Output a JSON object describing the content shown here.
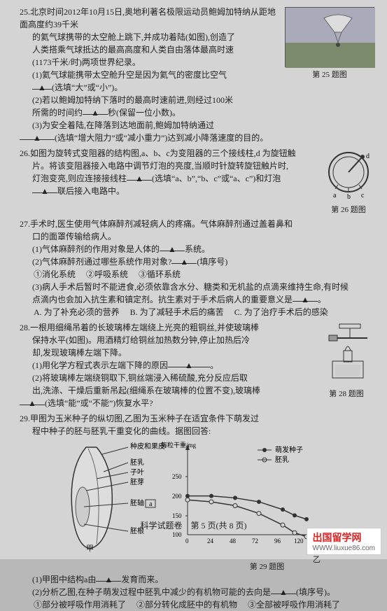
{
  "q25": {
    "num": "25.",
    "line1": "北京时间2012年10月15日,奥地利著名极限运动员鲍姆加特纳从距地面高度约39千米",
    "line2": "的氦气球携带的太空舱上跳下,并成功着陆(如图),创造了",
    "line3": "人类搭乘气球抵达的最高高度和人类自由落体最高时速",
    "line4": "(1173千米/时)两项世界纪录。",
    "p1a": "(1)氦气球能携带太空舱升空是因为氦气的密度比空气",
    "p1b": "(选填“大”或“小”)。",
    "p2a": "(2)若以鲍姆加特纳下落时的最高时速前进,则经过100米",
    "p2b": "所需的时间约",
    "p2c": "秒(保留一位小数)。",
    "p3a": "(3)为安全着陆,在降落到达地面前,鲍姆加特纳通过",
    "p3b": "(选填“增大阻力”或“减小重力”)达到减小降落速度的目的。",
    "figcap": "第 25 题图"
  },
  "q26": {
    "num": "26.",
    "line1": "如图为旋转式变阻器的结构图,a、b、c为变阻器的三个接线柱,d 为旋钮触",
    "line2": "片。将该变阻器接入电路中调节灯泡的亮度,当顺时针旋转旋钮触片时,",
    "p1a": "灯泡变亮,则应连接接线柱",
    "p1b": "(选填“a、b”,“b、c”或“a、c”)和灯泡",
    "p1c": "联后接入电路中。",
    "figcap": "第 26 题图"
  },
  "q27": {
    "num": "27.",
    "line1": "手术时,医生使用气体麻醉剂减轻病人的疼痛。气体麻醉剂通过盖着鼻和",
    "line2": "口的面罩传输给病人。",
    "p1a": "(1)气体麻醉剂的作用对象是人体的",
    "p1b": "系统。",
    "p2a": "(2)气体麻醉剂通过哪些系统作用对象?",
    "p2b": "(填序号)",
    "opts": [
      "①消化系统",
      "②呼吸系统",
      "③循环系统"
    ],
    "p3a": "(3)病人手术后暂时不能进食,必须依靠含水分、糖类和无机盐的点滴来维持生命,有时候",
    "p3b": "点滴内也会加入抗生素和镇定剂。抗生素对于手术后病人的重要意义是",
    "opts2": {
      "a": "A. 为了补充必须的营养",
      "b": "B. 为了减轻手术后的痛苦",
      "c": "C. 为了治疗手术后的感染"
    }
  },
  "q28": {
    "num": "28.",
    "line1": "一根用细绳吊着的长玻璃棒左端绕上光亮的粗铜丝,并使玻璃棒",
    "line2": "保持水平(如图)。用酒精灯给铜丝加热数分钟,停止加热后冷",
    "line3": "却,发现玻璃棒左端下降。",
    "p1": "(1)用化学方程式表示左端下降的原因",
    "p2a": "(2)将玻璃棒左端绕铜取下,铜丝端浸入稀硫酸,充分反应后取",
    "p2b": "出,洗涤、干燥后重新吊起(细绳系在玻璃棒的位置不变),玻璃棒",
    "p2c": "(选填“能”或“不能”)恢复水平?",
    "figcap": "第 28 题图"
  },
  "q29": {
    "num": "29.",
    "line1": "甲图为玉米种子的纵切图,乙图为玉米种子在适宜条件下萌发过",
    "line2": "程中种子的胚与胚乳干重变化的曲线。据图回答:",
    "seed_labels": {
      "l1": "种皮和果皮",
      "l2": "胚乳",
      "l3": "子叶",
      "l4": "胚芽",
      "l5": "胚轴",
      "l6": "胚根",
      "a": "a"
    },
    "chart": {
      "ylabel": "每粒干重/mg",
      "yticks": [
        "100",
        "150",
        "200",
        "250"
      ],
      "xlabel": "时间/h",
      "xticks": [
        "0",
        "24",
        "48",
        "72",
        "96",
        "120"
      ],
      "legend1": "萌发种子",
      "legend2": "胚乳",
      "series1": [
        [
          0,
          200
        ],
        [
          24,
          200
        ],
        [
          48,
          195
        ],
        [
          72,
          185
        ],
        [
          96,
          165
        ],
        [
          108,
          150
        ],
        [
          120,
          140
        ]
      ],
      "series2": [
        [
          0,
          190
        ],
        [
          24,
          185
        ],
        [
          48,
          175
        ],
        [
          72,
          155
        ],
        [
          96,
          125
        ],
        [
          108,
          105
        ],
        [
          120,
          95
        ]
      ]
    },
    "sub_jia": "甲",
    "sub_yi": "乙",
    "figcap": "第 29 题图",
    "p1a": "(1)甲图中结构a由",
    "p1b": "发育而来。",
    "p2a": "(2)分析乙图,在种子萌发过程中胚乳中减少的有机物可能的去向是",
    "p2b": "(填序号)。",
    "opts": {
      "a": "①部分被呼吸作用消耗了",
      "b": "②部分转化成胚中的有机物",
      "c": "③全部被呼吸作用消耗了"
    }
  },
  "footer": "科学试题卷　第 5 页(共 8 页)",
  "watermark": {
    "cn": "出国留学网",
    "url": "WWW.liuxue86.com"
  }
}
